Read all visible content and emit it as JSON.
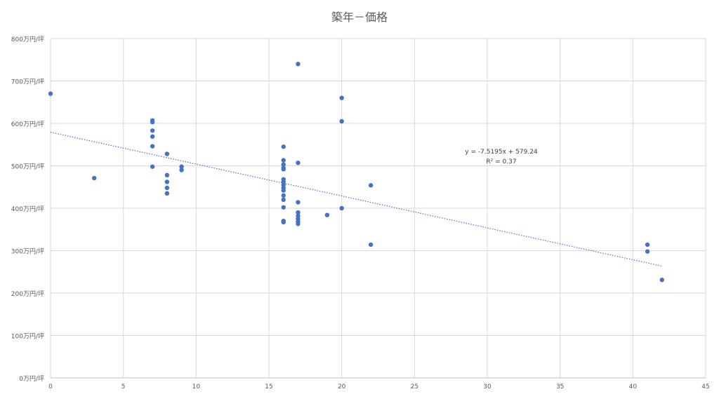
{
  "chart_data": {
    "type": "scatter",
    "title": "築年－価格",
    "xlabel": "",
    "ylabel": "",
    "xlim": [
      0,
      45
    ],
    "ylim": [
      0,
      800
    ],
    "x_ticks": [
      0,
      5,
      10,
      15,
      20,
      25,
      30,
      35,
      40,
      45
    ],
    "y_ticks": [
      0,
      100,
      200,
      300,
      400,
      500,
      600,
      700,
      800
    ],
    "y_tick_labels": [
      "0万円/坪",
      "100万円/坪",
      "200万円/坪",
      "300万円/坪",
      "400万円/坪",
      "500万円/坪",
      "600万円/坪",
      "700万円/坪",
      "800万円/坪"
    ],
    "grid": true,
    "legend": "none",
    "marker_color": "#4472C4",
    "trendline_color": "#4472C4",
    "series": [
      {
        "points": [
          [
            0,
            670
          ],
          [
            3,
            471
          ],
          [
            7,
            607
          ],
          [
            7,
            603
          ],
          [
            7,
            583
          ],
          [
            7,
            569
          ],
          [
            7,
            546
          ],
          [
            7,
            498
          ],
          [
            8,
            528
          ],
          [
            8,
            478
          ],
          [
            8,
            462
          ],
          [
            8,
            448
          ],
          [
            8,
            435
          ],
          [
            9,
            498
          ],
          [
            9,
            490
          ],
          [
            16,
            545
          ],
          [
            16,
            513
          ],
          [
            16,
            503
          ],
          [
            16,
            495
          ],
          [
            16,
            492
          ],
          [
            16,
            468
          ],
          [
            16,
            462
          ],
          [
            16,
            455
          ],
          [
            16,
            448
          ],
          [
            16,
            442
          ],
          [
            16,
            430
          ],
          [
            16,
            420
          ],
          [
            16,
            402
          ],
          [
            16,
            370
          ],
          [
            16,
            367
          ],
          [
            17,
            740
          ],
          [
            17,
            507
          ],
          [
            17,
            414
          ],
          [
            17,
            390
          ],
          [
            17,
            382
          ],
          [
            17,
            375
          ],
          [
            17,
            368
          ],
          [
            17,
            363
          ],
          [
            19,
            384
          ],
          [
            20,
            660
          ],
          [
            20,
            605
          ],
          [
            20,
            400
          ],
          [
            22,
            454
          ],
          [
            22,
            314
          ],
          [
            41,
            314
          ],
          [
            41,
            298
          ],
          [
            42,
            231
          ]
        ]
      }
    ],
    "trendline": {
      "type": "linear",
      "slope": -7.5195,
      "intercept": 579.24,
      "x_range": [
        0,
        42
      ],
      "equation_label": "y = -7.5195x + 579.24",
      "r2_label": "R² = 0.37"
    }
  }
}
